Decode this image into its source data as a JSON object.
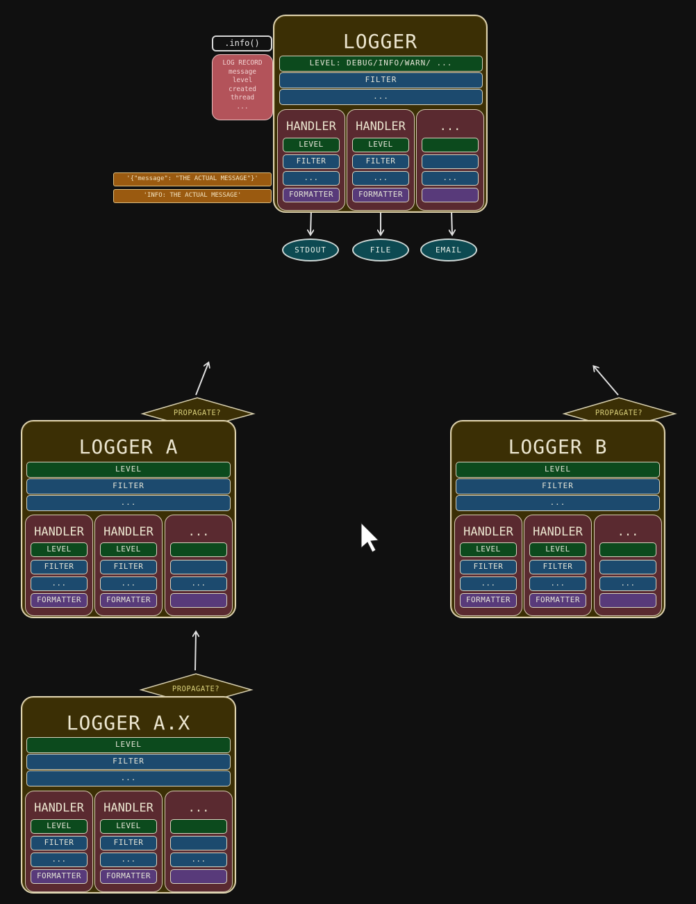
{
  "main_logger": {
    "title": "LOGGER",
    "level_bar": "LEVEL: DEBUG/INFO/WARN/ ...",
    "filter_bar": "FILTER",
    "more_bar": "...",
    "handlers": [
      {
        "title": "HANDLER",
        "bars": [
          "LEVEL",
          "FILTER",
          "...",
          "FORMATTER"
        ]
      },
      {
        "title": "HANDLER",
        "bars": [
          "LEVEL",
          "FILTER",
          "...",
          "FORMATTER"
        ]
      },
      {
        "title": "...",
        "bars": [
          "",
          "",
          "...",
          ""
        ]
      }
    ],
    "destinations": [
      "STDOUT",
      "FILE",
      "EMAIL"
    ]
  },
  "method_call": ".info()",
  "log_record": {
    "lines": [
      "LOG RECORD",
      "message",
      "level",
      "created",
      "thread",
      "..."
    ]
  },
  "formatted_outputs": [
    "'{\"message\": \"THE ACTUAL MESSAGE\"}'",
    "'INFO: THE ACTUAL MESSAGE'"
  ],
  "propagate_label": "PROPAGATE?",
  "loggers": [
    {
      "id": "a",
      "title": "LOGGER A",
      "level_bar": "LEVEL",
      "filter_bar": "FILTER",
      "more_bar": "...",
      "handlers": [
        {
          "title": "HANDLER",
          "bars": [
            "LEVEL",
            "FILTER",
            "...",
            "FORMATTER"
          ]
        },
        {
          "title": "HANDLER",
          "bars": [
            "LEVEL",
            "FILTER",
            "...",
            "FORMATTER"
          ]
        },
        {
          "title": "...",
          "bars": [
            "",
            "",
            "...",
            ""
          ]
        }
      ]
    },
    {
      "id": "b",
      "title": "LOGGER B",
      "level_bar": "LEVEL",
      "filter_bar": "FILTER",
      "more_bar": "...",
      "handlers": [
        {
          "title": "HANDLER",
          "bars": [
            "LEVEL",
            "FILTER",
            "...",
            "FORMATTER"
          ]
        },
        {
          "title": "HANDLER",
          "bars": [
            "LEVEL",
            "FILTER",
            "...",
            "FORMATTER"
          ]
        },
        {
          "title": "...",
          "bars": [
            "",
            "",
            "...",
            ""
          ]
        }
      ]
    },
    {
      "id": "ax",
      "title": "LOGGER A.X",
      "level_bar": "LEVEL",
      "filter_bar": "FILTER",
      "more_bar": "...",
      "handlers": [
        {
          "title": "HANDLER",
          "bars": [
            "LEVEL",
            "FILTER",
            "...",
            "FORMATTER"
          ]
        },
        {
          "title": "HANDLER",
          "bars": [
            "LEVEL",
            "FILTER",
            "...",
            "FORMATTER"
          ]
        },
        {
          "title": "...",
          "bars": [
            "",
            "",
            "...",
            ""
          ]
        }
      ]
    }
  ],
  "colors": {
    "background": "#101010",
    "logger": "#3b2f05",
    "handler": "#5a2a30",
    "level": "#0c4a1d",
    "filter": "#1c4a6e",
    "formatter": "#583a7a",
    "destination": "#0d4a52",
    "record": "#b3535a",
    "formatted_output": "#9a5a10",
    "propagate": "#3b2f05"
  }
}
